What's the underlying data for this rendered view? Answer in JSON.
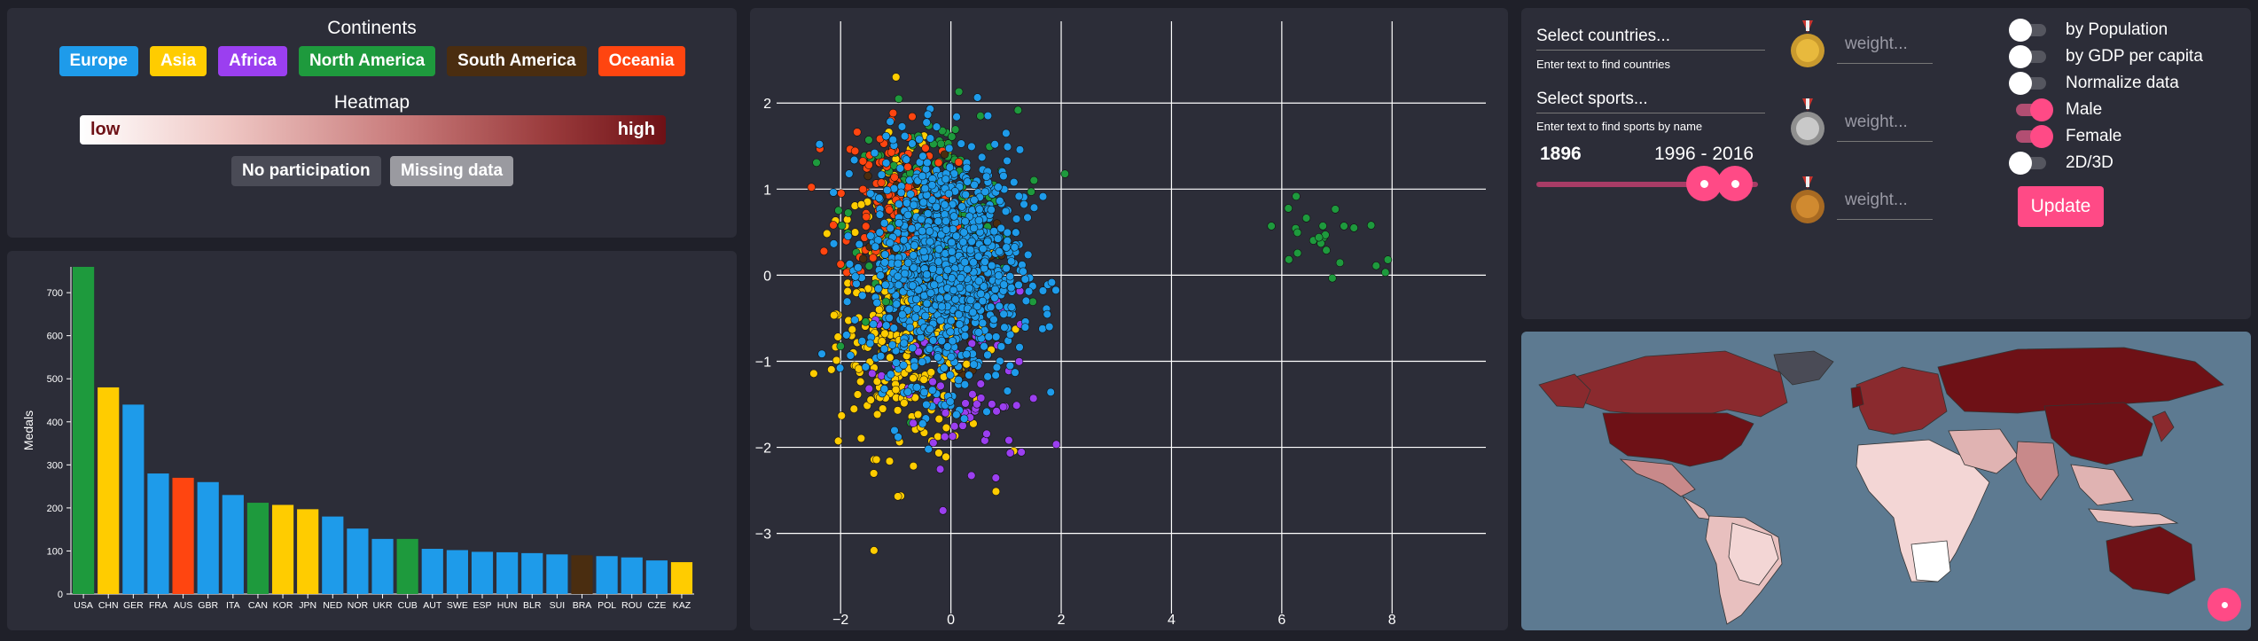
{
  "legend": {
    "title": "Continents",
    "continents": [
      {
        "label": "Europe",
        "color": "#1e9bea"
      },
      {
        "label": "Asia",
        "color": "#ffcc00"
      },
      {
        "label": "Africa",
        "color": "#9b3ff0"
      },
      {
        "label": "North America",
        "color": "#1e9a3d"
      },
      {
        "label": "South America",
        "color": "#4a2d10"
      },
      {
        "label": "Oceania",
        "color": "#ff4510"
      }
    ],
    "heatmap_title": "Heatmap",
    "heat_low": "low",
    "heat_high": "high",
    "no_participation": "No participation",
    "missing_data": "Missing data"
  },
  "chart_data": [
    {
      "type": "bar",
      "ylabel": "Medals",
      "xlabel": "",
      "ylim": [
        0,
        760
      ],
      "yticks": [
        0,
        100,
        200,
        300,
        400,
        500,
        600,
        700
      ],
      "categories": [
        "USA",
        "CHN",
        "GER",
        "FRA",
        "AUS",
        "GBR",
        "ITA",
        "CAN",
        "KOR",
        "JPN",
        "NED",
        "NOR",
        "UKR",
        "CUB",
        "AUT",
        "SWE",
        "ESP",
        "HUN",
        "BLR",
        "SUI",
        "BRA",
        "POL",
        "ROU",
        "CZE",
        "KAZ"
      ],
      "values": [
        770,
        480,
        440,
        280,
        270,
        260,
        230,
        212,
        207,
        197,
        180,
        152,
        128,
        128,
        105,
        102,
        98,
        97,
        95,
        92,
        90,
        88,
        85,
        78,
        74
      ],
      "colors": [
        "#1e9a3d",
        "#ffcc00",
        "#1e9bea",
        "#1e9bea",
        "#ff4510",
        "#1e9bea",
        "#1e9bea",
        "#1e9a3d",
        "#ffcc00",
        "#ffcc00",
        "#1e9bea",
        "#1e9bea",
        "#1e9bea",
        "#1e9a3d",
        "#1e9bea",
        "#1e9bea",
        "#1e9bea",
        "#1e9bea",
        "#1e9bea",
        "#1e9bea",
        "#4a2d10",
        "#1e9bea",
        "#1e9bea",
        "#1e9bea",
        "#ffcc00"
      ]
    },
    {
      "type": "scatter",
      "xlim": [
        -3,
        9.7
      ],
      "ylim": [
        -3.9,
        2.95
      ],
      "xticks": [
        -2,
        0,
        2,
        4,
        6,
        8
      ],
      "yticks": [
        -3,
        -2,
        -1,
        0,
        1,
        2
      ],
      "grid": true,
      "series": [
        {
          "color": "#1e9bea",
          "cx": -0.1,
          "cy": 0.1,
          "sx": 0.9,
          "sy": 0.9,
          "n": 1000
        },
        {
          "color": "#ffcc00",
          "cx": -0.7,
          "cy": -0.4,
          "sx": 0.9,
          "sy": 1.1,
          "n": 440
        },
        {
          "color": "#1e9a3d",
          "cx": -0.3,
          "cy": 0.7,
          "sx": 1.0,
          "sy": 0.8,
          "n": 180
        },
        {
          "color": "#ff4510",
          "cx": -1.0,
          "cy": 0.9,
          "sx": 0.7,
          "sy": 0.7,
          "n": 130
        },
        {
          "color": "#9b3ff0",
          "cx": 0.2,
          "cy": -1.4,
          "sx": 1.0,
          "sy": 0.8,
          "n": 70
        },
        {
          "color": "#4a2d10",
          "cx": -0.5,
          "cy": 0.0,
          "sx": 0.8,
          "sy": 0.8,
          "n": 70
        },
        {
          "color": "#1e9a3d",
          "cx": 6.9,
          "cy": 0.45,
          "sx": 1.0,
          "sy": 0.4,
          "n": 24
        }
      ]
    }
  ],
  "controls": {
    "select_countries": "Select countries...",
    "countries_hint": "Enter text to find countries",
    "select_sports": "Select sports...",
    "sports_hint": "Enter text to find sports by name",
    "year_start": "1896",
    "year_range": "1996 - 2016",
    "weight_placeholder": "weight...",
    "toggles": [
      {
        "label": "by Population",
        "on": false
      },
      {
        "label": "by GDP per capita",
        "on": false
      },
      {
        "label": "Normalize data",
        "on": false
      },
      {
        "label": "Male",
        "on": true
      },
      {
        "label": "Female",
        "on": true
      },
      {
        "label": "2D/3D",
        "on": false
      }
    ],
    "update": "Update"
  },
  "map": {
    "ocean_color": "#5d7a91"
  }
}
